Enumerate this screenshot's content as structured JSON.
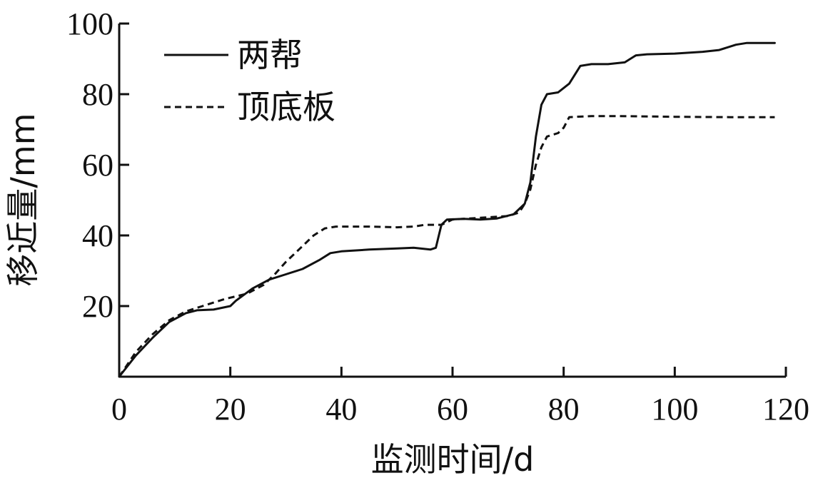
{
  "chart_data": {
    "type": "line",
    "xlabel": "监测时间/d",
    "ylabel": "移近量/mm",
    "xlim": [
      0,
      120
    ],
    "ylim": [
      0,
      100
    ],
    "x_ticks": [
      0,
      20,
      40,
      60,
      80,
      100,
      120
    ],
    "y_ticks": [
      20,
      40,
      60,
      80,
      100
    ],
    "grid": false,
    "legend_position": "top-left",
    "series": [
      {
        "name": "两帮",
        "style": "solid",
        "color": "#111111",
        "points": [
          [
            0,
            0
          ],
          [
            3,
            6
          ],
          [
            6,
            11
          ],
          [
            9,
            15.5
          ],
          [
            12,
            18
          ],
          [
            14,
            18.8
          ],
          [
            17,
            19
          ],
          [
            20,
            20
          ],
          [
            21,
            21.5
          ],
          [
            24,
            25
          ],
          [
            27,
            27.5
          ],
          [
            30,
            29
          ],
          [
            33,
            30.5
          ],
          [
            36,
            33
          ],
          [
            38,
            35
          ],
          [
            40,
            35.5
          ],
          [
            45,
            36
          ],
          [
            50,
            36.3
          ],
          [
            53,
            36.5
          ],
          [
            56,
            36
          ],
          [
            57,
            36.5
          ],
          [
            58,
            43
          ],
          [
            59,
            44.5
          ],
          [
            62,
            44.7
          ],
          [
            65,
            44.5
          ],
          [
            68,
            44.8
          ],
          [
            71,
            46
          ],
          [
            73,
            49
          ],
          [
            74,
            55
          ],
          [
            75,
            68
          ],
          [
            76,
            77
          ],
          [
            77,
            80
          ],
          [
            79,
            80.5
          ],
          [
            81,
            83
          ],
          [
            83,
            88
          ],
          [
            85,
            88.5
          ],
          [
            88,
            88.5
          ],
          [
            91,
            89
          ],
          [
            93,
            91
          ],
          [
            95,
            91.3
          ],
          [
            100,
            91.5
          ],
          [
            105,
            92
          ],
          [
            108,
            92.5
          ],
          [
            111,
            94
          ],
          [
            113,
            94.5
          ],
          [
            118,
            94.5
          ]
        ]
      },
      {
        "name": "顶底板",
        "style": "dashed",
        "color": "#111111",
        "points": [
          [
            0,
            0
          ],
          [
            3,
            7
          ],
          [
            6,
            12
          ],
          [
            9,
            16
          ],
          [
            12,
            18.5
          ],
          [
            15,
            20
          ],
          [
            19,
            22
          ],
          [
            23,
            23.5
          ],
          [
            26,
            26
          ],
          [
            28,
            29
          ],
          [
            30,
            32.5
          ],
          [
            33,
            37
          ],
          [
            35,
            40
          ],
          [
            37,
            42
          ],
          [
            39,
            42.5
          ],
          [
            45,
            42.5
          ],
          [
            50,
            42.3
          ],
          [
            53,
            42.5
          ],
          [
            55,
            43
          ],
          [
            58,
            43
          ],
          [
            60,
            44.5
          ],
          [
            65,
            45
          ],
          [
            70,
            45.5
          ],
          [
            72,
            46.5
          ],
          [
            73,
            49
          ],
          [
            74,
            53
          ],
          [
            75,
            60
          ],
          [
            76,
            65
          ],
          [
            77,
            68
          ],
          [
            79,
            69
          ],
          [
            80,
            70.5
          ],
          [
            81,
            73.5
          ],
          [
            85,
            73.8
          ],
          [
            90,
            73.8
          ],
          [
            100,
            73.6
          ],
          [
            110,
            73.5
          ],
          [
            118,
            73.5
          ]
        ]
      }
    ]
  }
}
